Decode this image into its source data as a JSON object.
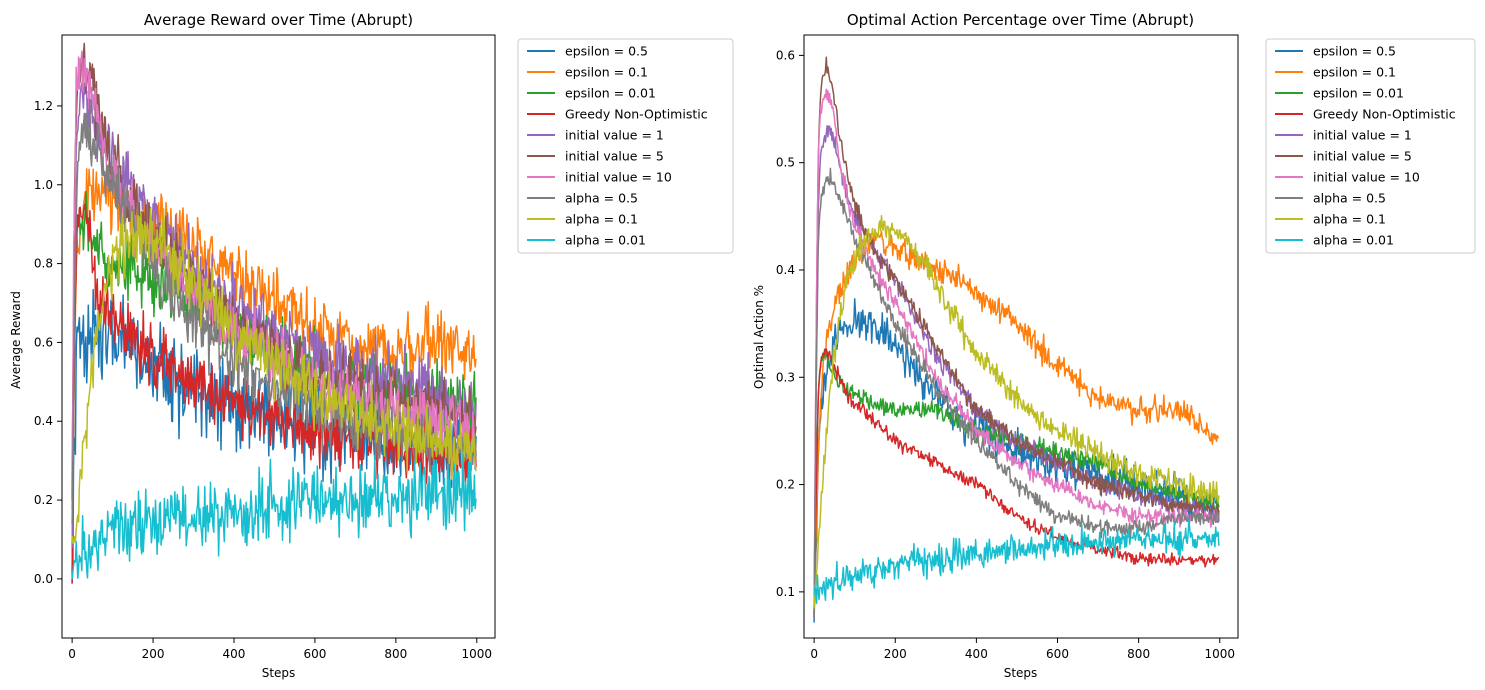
{
  "figure": {},
  "chart_data": [
    {
      "type": "line",
      "title": "Average Reward over Time (Abrupt)",
      "xlabel": "Steps",
      "ylabel": "Average Reward",
      "xlim": [
        -25,
        1045
      ],
      "ylim": [
        -0.15,
        1.38
      ],
      "xticks": [
        0,
        200,
        400,
        600,
        800,
        1000
      ],
      "yticks": [
        0.0,
        0.2,
        0.4,
        0.6,
        0.8,
        1.0,
        1.2
      ],
      "ytick_labels": [
        "0.0",
        "0.2",
        "0.4",
        "0.6",
        "0.8",
        "1.0",
        "1.2"
      ],
      "grid": false,
      "legend_position": "outside upper right",
      "x": [
        0,
        5,
        10,
        15,
        20,
        30,
        40,
        50,
        60,
        80,
        100,
        150,
        200,
        300,
        400,
        500,
        600,
        700,
        800,
        900,
        1000
      ],
      "series": [
        {
          "name": "epsilon = 0.5",
          "color": "#1f77b4",
          "noise": 0.055,
          "values": [
            0.02,
            0.3,
            0.5,
            0.6,
            0.62,
            0.62,
            0.63,
            0.63,
            0.62,
            0.61,
            0.6,
            0.58,
            0.55,
            0.48,
            0.43,
            0.4,
            0.38,
            0.37,
            0.36,
            0.35,
            0.34
          ]
        },
        {
          "name": "epsilon = 0.1",
          "color": "#ff7f0e",
          "noise": 0.04,
          "values": [
            0.1,
            0.5,
            0.75,
            0.85,
            0.9,
            0.93,
            0.95,
            0.96,
            0.97,
            0.98,
            0.97,
            0.93,
            0.9,
            0.85,
            0.78,
            0.7,
            0.64,
            0.6,
            0.58,
            0.6,
            0.58
          ]
        },
        {
          "name": "epsilon = 0.01",
          "color": "#2ca02c",
          "noise": 0.04,
          "values": [
            0.0,
            0.5,
            0.8,
            0.9,
            0.92,
            0.9,
            0.88,
            0.86,
            0.85,
            0.83,
            0.8,
            0.78,
            0.76,
            0.72,
            0.65,
            0.58,
            0.53,
            0.5,
            0.48,
            0.45,
            0.44
          ]
        },
        {
          "name": "Greedy Non-Optimistic",
          "color": "#d62728",
          "noise": 0.04,
          "values": [
            -0.05,
            0.55,
            0.85,
            0.93,
            0.95,
            0.93,
            0.88,
            0.8,
            0.75,
            0.7,
            0.66,
            0.6,
            0.56,
            0.5,
            0.45,
            0.42,
            0.38,
            0.35,
            0.33,
            0.32,
            0.3
          ]
        },
        {
          "name": "initial value = 1",
          "color": "#9467bd",
          "noise": 0.04,
          "values": [
            0.1,
            0.7,
            1.1,
            1.18,
            1.2,
            1.21,
            1.2,
            1.18,
            1.15,
            1.1,
            1.05,
            0.98,
            0.9,
            0.8,
            0.7,
            0.62,
            0.57,
            0.53,
            0.5,
            0.47,
            0.42
          ]
        },
        {
          "name": "initial value = 5",
          "color": "#8c564b",
          "noise": 0.04,
          "values": [
            0.2,
            0.9,
            1.2,
            1.25,
            1.27,
            1.28,
            1.27,
            1.25,
            1.2,
            1.12,
            1.05,
            0.95,
            0.87,
            0.75,
            0.65,
            0.58,
            0.52,
            0.48,
            0.45,
            0.43,
            0.4
          ]
        },
        {
          "name": "initial value = 10",
          "color": "#e377c2",
          "noise": 0.04,
          "values": [
            0.2,
            0.9,
            1.22,
            1.27,
            1.29,
            1.29,
            1.27,
            1.24,
            1.18,
            1.1,
            1.02,
            0.92,
            0.85,
            0.72,
            0.63,
            0.56,
            0.5,
            0.46,
            0.42,
            0.4,
            0.37
          ]
        },
        {
          "name": "alpha = 0.5",
          "color": "#7f7f7f",
          "noise": 0.04,
          "values": [
            0.1,
            0.6,
            0.95,
            1.05,
            1.1,
            1.12,
            1.13,
            1.12,
            1.1,
            1.05,
            1.0,
            0.9,
            0.8,
            0.66,
            0.55,
            0.48,
            0.43,
            0.4,
            0.37,
            0.34,
            0.32
          ]
        },
        {
          "name": "alpha = 0.1",
          "color": "#bcbd22",
          "noise": 0.04,
          "values": [
            0.05,
            0.08,
            0.12,
            0.18,
            0.25,
            0.35,
            0.45,
            0.55,
            0.62,
            0.72,
            0.8,
            0.86,
            0.88,
            0.75,
            0.63,
            0.55,
            0.48,
            0.42,
            0.38,
            0.35,
            0.32
          ]
        },
        {
          "name": "alpha = 0.01",
          "color": "#17becf",
          "noise": 0.045,
          "values": [
            0.0,
            0.02,
            0.04,
            0.05,
            0.06,
            0.07,
            0.08,
            0.09,
            0.1,
            0.11,
            0.12,
            0.13,
            0.14,
            0.16,
            0.17,
            0.18,
            0.19,
            0.2,
            0.2,
            0.21,
            0.21
          ]
        }
      ]
    },
    {
      "type": "line",
      "title": "Optimal Action Percentage over Time (Abrupt)",
      "xlabel": "Steps",
      "ylabel": "Optimal Action %",
      "xlim": [
        -25,
        1045
      ],
      "ylim": [
        0.057,
        0.619
      ],
      "xticks": [
        0,
        200,
        400,
        600,
        800,
        1000
      ],
      "yticks": [
        0.1,
        0.2,
        0.3,
        0.4,
        0.5,
        0.6
      ],
      "ytick_labels": [
        "0.1",
        "0.2",
        "0.3",
        "0.4",
        "0.5",
        "0.6"
      ],
      "grid": false,
      "legend_position": "outside upper right",
      "x": [
        0,
        5,
        10,
        15,
        20,
        30,
        40,
        50,
        60,
        80,
        100,
        150,
        200,
        300,
        400,
        500,
        600,
        700,
        800,
        900,
        1000
      ],
      "series": [
        {
          "name": "epsilon = 0.5",
          "color": "#1f77b4",
          "noise": 0.009,
          "values": [
            0.08,
            0.15,
            0.22,
            0.26,
            0.28,
            0.3,
            0.32,
            0.33,
            0.34,
            0.35,
            0.355,
            0.35,
            0.33,
            0.28,
            0.25,
            0.23,
            0.22,
            0.21,
            0.2,
            0.19,
            0.18
          ]
        },
        {
          "name": "epsilon = 0.1",
          "color": "#ff7f0e",
          "noise": 0.006,
          "values": [
            0.08,
            0.15,
            0.22,
            0.27,
            0.3,
            0.33,
            0.35,
            0.36,
            0.38,
            0.4,
            0.41,
            0.43,
            0.42,
            0.4,
            0.38,
            0.35,
            0.31,
            0.28,
            0.27,
            0.27,
            0.24
          ]
        },
        {
          "name": "epsilon = 0.01",
          "color": "#2ca02c",
          "noise": 0.004,
          "values": [
            0.08,
            0.2,
            0.28,
            0.31,
            0.32,
            0.32,
            0.31,
            0.3,
            0.295,
            0.29,
            0.285,
            0.275,
            0.27,
            0.27,
            0.25,
            0.24,
            0.23,
            0.22,
            0.2,
            0.19,
            0.18
          ]
        },
        {
          "name": "Greedy Non-Optimistic",
          "color": "#d62728",
          "noise": 0.003,
          "values": [
            0.08,
            0.2,
            0.28,
            0.31,
            0.32,
            0.325,
            0.32,
            0.31,
            0.3,
            0.285,
            0.275,
            0.26,
            0.24,
            0.22,
            0.2,
            0.17,
            0.15,
            0.14,
            0.13,
            0.13,
            0.13
          ]
        },
        {
          "name": "initial value = 1",
          "color": "#9467bd",
          "noise": 0.004,
          "values": [
            0.08,
            0.3,
            0.45,
            0.5,
            0.52,
            0.53,
            0.53,
            0.52,
            0.5,
            0.47,
            0.45,
            0.42,
            0.39,
            0.32,
            0.27,
            0.24,
            0.22,
            0.2,
            0.19,
            0.18,
            0.17
          ]
        },
        {
          "name": "initial value = 5",
          "color": "#8c564b",
          "noise": 0.004,
          "values": [
            0.08,
            0.35,
            0.5,
            0.56,
            0.58,
            0.59,
            0.58,
            0.56,
            0.53,
            0.49,
            0.46,
            0.42,
            0.39,
            0.33,
            0.27,
            0.24,
            0.22,
            0.2,
            0.19,
            0.18,
            0.175
          ]
        },
        {
          "name": "initial value = 10",
          "color": "#e377c2",
          "noise": 0.004,
          "values": [
            0.08,
            0.35,
            0.5,
            0.55,
            0.56,
            0.565,
            0.56,
            0.54,
            0.51,
            0.47,
            0.44,
            0.4,
            0.37,
            0.3,
            0.25,
            0.22,
            0.2,
            0.18,
            0.17,
            0.17,
            0.17
          ]
        },
        {
          "name": "alpha = 0.5",
          "color": "#7f7f7f",
          "noise": 0.004,
          "values": [
            0.08,
            0.3,
            0.42,
            0.46,
            0.47,
            0.48,
            0.485,
            0.48,
            0.47,
            0.45,
            0.43,
            0.39,
            0.35,
            0.29,
            0.24,
            0.2,
            0.17,
            0.16,
            0.16,
            0.17,
            0.17
          ]
        },
        {
          "name": "alpha = 0.1",
          "color": "#bcbd22",
          "noise": 0.006,
          "values": [
            0.09,
            0.11,
            0.14,
            0.17,
            0.2,
            0.25,
            0.29,
            0.32,
            0.35,
            0.39,
            0.41,
            0.44,
            0.44,
            0.39,
            0.32,
            0.28,
            0.25,
            0.23,
            0.21,
            0.2,
            0.19
          ]
        },
        {
          "name": "alpha = 0.01",
          "color": "#17becf",
          "noise": 0.007,
          "values": [
            0.1,
            0.1,
            0.1,
            0.1,
            0.1,
            0.105,
            0.105,
            0.11,
            0.11,
            0.11,
            0.115,
            0.12,
            0.125,
            0.13,
            0.135,
            0.14,
            0.145,
            0.145,
            0.15,
            0.15,
            0.15
          ]
        }
      ]
    }
  ]
}
